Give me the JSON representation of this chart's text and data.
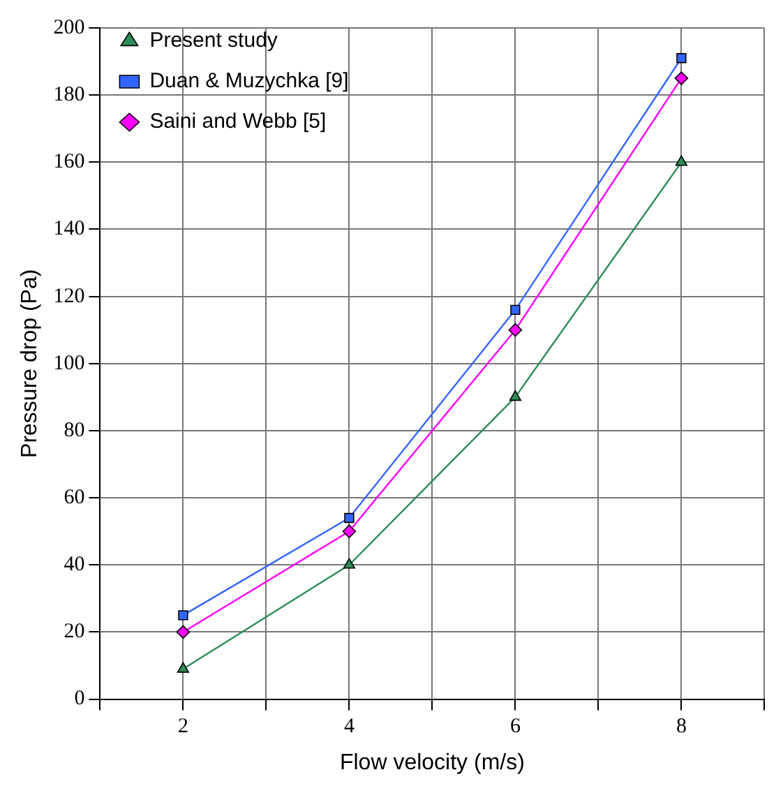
{
  "chart_data": {
    "type": "line",
    "xlabel": "Flow velocity (m/s)",
    "ylabel": "Pressure drop (Pa)",
    "x": [
      2,
      4,
      6,
      8
    ],
    "series": [
      {
        "name": "Present study",
        "color": "#2e8b57",
        "marker": "triangle",
        "values": [
          9,
          40,
          90,
          160
        ]
      },
      {
        "name": "Duan & Muzychka [9]",
        "color": "#3366ff",
        "marker": "square",
        "values": [
          25,
          54,
          116,
          191
        ]
      },
      {
        "name": "Saini and Webb [5]",
        "color": "#ff00ff",
        "marker": "diamond",
        "values": [
          20,
          50,
          110,
          185
        ]
      }
    ],
    "xlim": [
      1,
      9
    ],
    "xticks": [
      {
        "value": 1,
        "label": null
      },
      2,
      {
        "value": 3,
        "label": null
      },
      4,
      {
        "value": 5,
        "label": null
      },
      6,
      {
        "value": 7,
        "label": null
      },
      8,
      {
        "value": 9,
        "label": null
      }
    ],
    "ylim": [
      0,
      200
    ],
    "yticks": [
      0,
      20,
      40,
      60,
      80,
      100,
      120,
      140,
      160,
      180,
      200
    ],
    "grid": true,
    "legend": "top left",
    "line_style": "solid"
  }
}
